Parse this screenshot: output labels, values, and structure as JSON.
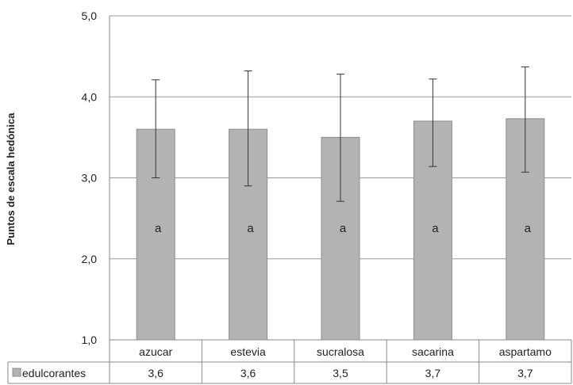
{
  "chart_data": {
    "type": "bar",
    "ylabel": "Puntos de escala  hedónica",
    "ylim": [
      1.0,
      5.0
    ],
    "y_ticks": [
      "1,0",
      "2,0",
      "3,0",
      "4,0",
      "5,0"
    ],
    "categories": [
      "azucar",
      "estevia",
      "sucralosa",
      "sacarina",
      "aspartamo"
    ],
    "series": [
      {
        "name": "edulcorantes",
        "values": [
          3.6,
          3.6,
          3.5,
          3.7,
          3.73
        ],
        "value_labels": [
          "3,6",
          "3,6",
          "3,5",
          "3,7",
          "3,7"
        ],
        "error_low": [
          3.0,
          2.9,
          2.71,
          3.14,
          3.07
        ],
        "error_high": [
          4.21,
          4.32,
          4.28,
          4.22,
          4.37
        ],
        "group_letters": [
          "a",
          "a",
          "a",
          "a",
          "a"
        ],
        "color": "#b3b3b3"
      }
    ],
    "grid": true,
    "legend_placement": "data-table-left",
    "data_table": true
  }
}
